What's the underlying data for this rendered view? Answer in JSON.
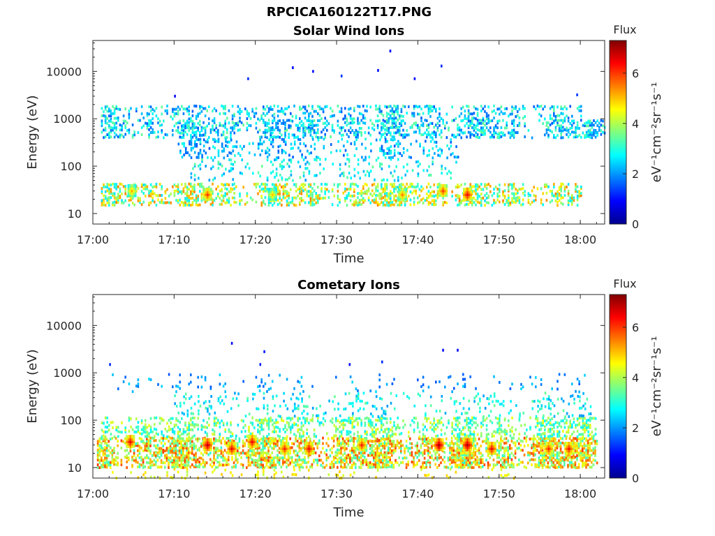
{
  "figure_title": "RPCICA160122T17.PNG",
  "chart_data": [
    {
      "type": "heatmap",
      "title": "Solar Wind Ions",
      "xlabel": "Time",
      "ylabel": "Energy (eV)",
      "x_range": [
        "17:00",
        "18:03"
      ],
      "x_ticks": [
        "17:00",
        "17:10",
        "17:20",
        "17:30",
        "17:40",
        "17:50",
        "18:00"
      ],
      "y_scale": "log",
      "y_range": [
        6,
        45000
      ],
      "y_ticks": [
        "10",
        "100",
        "1000",
        "10000"
      ],
      "colorbar": {
        "title": "Flux",
        "unit": "eV⁻¹cm⁻²sr⁻¹s⁻¹",
        "range": [
          0,
          7.3
        ],
        "ticks": [
          "0",
          "2",
          "4",
          "6"
        ]
      },
      "bands": [
        {
          "energy_range": [
            1000,
            2000
          ],
          "t_start": 1,
          "t_end": 60,
          "density": 0.35,
          "value_range": [
            1.5,
            3.5
          ]
        },
        {
          "energy_range": [
            400,
            1000
          ],
          "t_start": 1,
          "t_end": 63,
          "density": 0.45,
          "value_range": [
            1.5,
            3.5
          ]
        },
        {
          "energy_range": [
            150,
            400
          ],
          "t_start": 10,
          "t_end": 45,
          "density": 0.25,
          "value_range": [
            1.5,
            3.0
          ]
        },
        {
          "energy_range": [
            15,
            45
          ],
          "t_start": 1,
          "t_end": 60,
          "density": 0.5,
          "value_range": [
            2.5,
            5.5
          ]
        },
        {
          "energy_range": [
            50,
            150
          ],
          "t_start": 12,
          "t_end": 45,
          "density": 0.15,
          "value_range": [
            2.0,
            3.5
          ]
        }
      ],
      "hotspots": [
        {
          "time": 4.7,
          "energy": 30,
          "value": 5.2
        },
        {
          "time": 14,
          "energy": 25,
          "value": 6.0
        },
        {
          "time": 22,
          "energy": 25,
          "value": 5.0
        },
        {
          "time": 43,
          "energy": 30,
          "value": 6.0
        },
        {
          "time": 46,
          "energy": 25,
          "value": 6.5
        },
        {
          "time": 38,
          "energy": 25,
          "value": 5.5
        }
      ],
      "sparse_high": [
        {
          "time": 36.5,
          "energy": 27000,
          "value": 1.0
        },
        {
          "time": 42.8,
          "energy": 13000,
          "value": 1.2
        },
        {
          "time": 24.5,
          "energy": 12000,
          "value": 1.0
        },
        {
          "time": 27,
          "energy": 10000,
          "value": 1.0
        },
        {
          "time": 30.5,
          "energy": 8000,
          "value": 1.3
        },
        {
          "time": 35,
          "energy": 10500,
          "value": 1.0
        },
        {
          "time": 19,
          "energy": 7000,
          "value": 1.2
        },
        {
          "time": 39.5,
          "energy": 7000,
          "value": 1.0
        },
        {
          "time": 10,
          "energy": 3000,
          "value": 1.0
        },
        {
          "time": 59.5,
          "energy": 3200,
          "value": 1.3
        }
      ]
    },
    {
      "type": "heatmap",
      "title": "Cometary Ions",
      "xlabel": "Time",
      "ylabel": "Energy (eV)",
      "x_range": [
        "17:00",
        "18:03"
      ],
      "x_ticks": [
        "17:00",
        "17:10",
        "17:20",
        "17:30",
        "17:40",
        "17:50",
        "18:00"
      ],
      "y_scale": "log",
      "y_range": [
        6,
        45000
      ],
      "y_ticks": [
        "10",
        "100",
        "1000",
        "10000"
      ],
      "colorbar": {
        "title": "Flux",
        "unit": "eV⁻¹cm⁻²sr⁻¹s⁻¹",
        "range": [
          0,
          7.3
        ],
        "ticks": [
          "0",
          "2",
          "4",
          "6"
        ]
      },
      "bands": [
        {
          "energy_range": [
            10,
            45
          ],
          "t_start": 0.5,
          "t_end": 62,
          "density": 0.7,
          "value_range": [
            3.0,
            6.0
          ]
        },
        {
          "energy_range": [
            45,
            120
          ],
          "t_start": 1,
          "t_end": 62,
          "density": 0.4,
          "value_range": [
            2.5,
            4.5
          ]
        },
        {
          "energy_range": [
            120,
            400
          ],
          "t_start": 10,
          "t_end": 62,
          "density": 0.15,
          "value_range": [
            2.0,
            3.5
          ]
        },
        {
          "energy_range": [
            400,
            1000
          ],
          "t_start": 1,
          "t_end": 62,
          "density": 0.06,
          "value_range": [
            1.5,
            2.5
          ]
        },
        {
          "energy_range": [
            6,
            10
          ],
          "t_start": 1,
          "t_end": 52,
          "density": 0.1,
          "value_range": [
            4.0,
            5.0
          ]
        }
      ],
      "hotspots": [
        {
          "time": 4.5,
          "energy": 35,
          "value": 6.5
        },
        {
          "time": 14,
          "energy": 30,
          "value": 6.8
        },
        {
          "time": 17,
          "energy": 25,
          "value": 6.5
        },
        {
          "time": 19.5,
          "energy": 35,
          "value": 6.5
        },
        {
          "time": 23.5,
          "energy": 25,
          "value": 6.2
        },
        {
          "time": 26.5,
          "energy": 25,
          "value": 6.5
        },
        {
          "time": 33,
          "energy": 30,
          "value": 6.2
        },
        {
          "time": 42.5,
          "energy": 30,
          "value": 7.0
        },
        {
          "time": 46,
          "energy": 30,
          "value": 7.0
        },
        {
          "time": 49,
          "energy": 25,
          "value": 6.5
        },
        {
          "time": 56,
          "energy": 25,
          "value": 6.2
        },
        {
          "time": 58.5,
          "energy": 25,
          "value": 6.4
        }
      ],
      "sparse_high": [
        {
          "time": 17,
          "energy": 4200,
          "value": 1.0
        },
        {
          "time": 21,
          "energy": 2800,
          "value": 1.1
        },
        {
          "time": 43,
          "energy": 3000,
          "value": 1.0
        },
        {
          "time": 44.8,
          "energy": 3000,
          "value": 1.0
        },
        {
          "time": 2,
          "energy": 1500,
          "value": 1.2
        },
        {
          "time": 35.5,
          "energy": 1700,
          "value": 1.2
        },
        {
          "time": 31.5,
          "energy": 1500,
          "value": 1.0
        },
        {
          "time": 20.5,
          "energy": 1500,
          "value": 1.1
        }
      ]
    }
  ]
}
